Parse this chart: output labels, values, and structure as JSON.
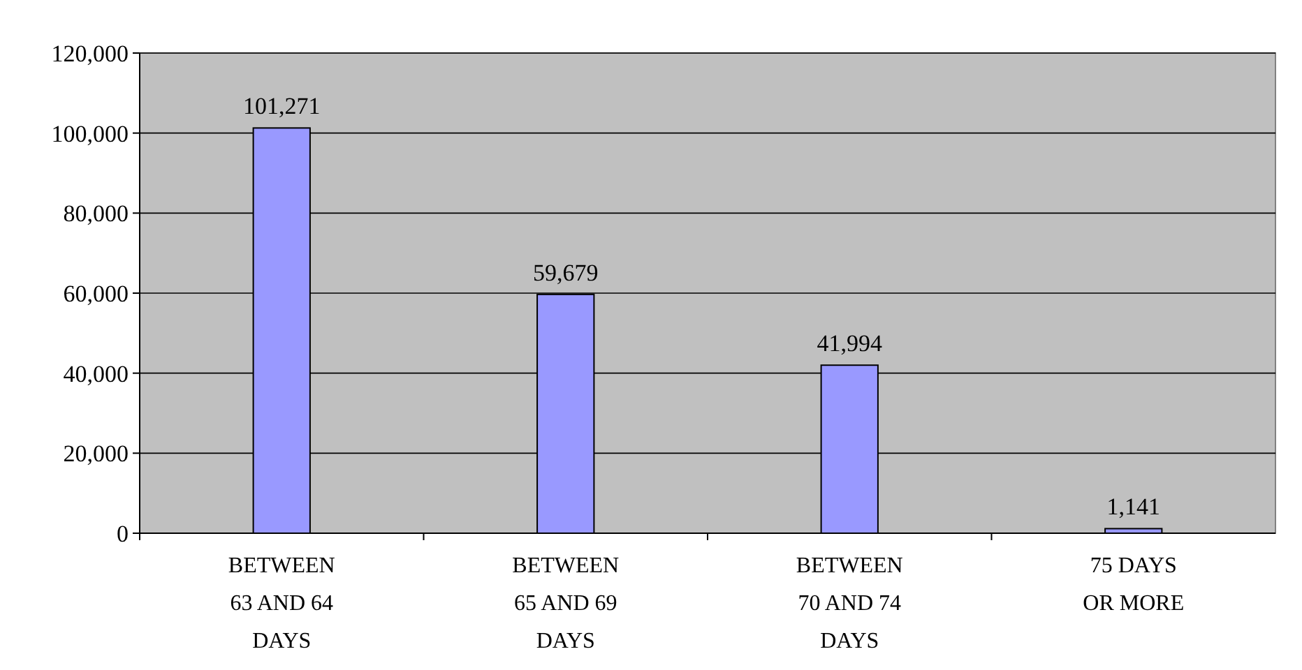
{
  "chart_data": {
    "type": "bar",
    "categories": [
      "BETWEEN 63 AND 64 DAYS",
      "BETWEEN 65 AND 69 DAYS",
      "BETWEEN 70 AND 74 DAYS",
      "75 DAYS OR MORE"
    ],
    "values": [
      101271,
      59679,
      41994,
      1141
    ],
    "color": "#9999ff",
    "ylim": [
      0,
      120000
    ],
    "yticks": [
      {
        "value": 0,
        "label": "0"
      },
      {
        "value": 20000,
        "label": "20,000"
      },
      {
        "value": 40000,
        "label": "40,000"
      },
      {
        "value": 60000,
        "label": "60,000"
      },
      {
        "value": 80000,
        "label": "80,000"
      },
      {
        "value": 100000,
        "label": "100,000"
      },
      {
        "value": 120000,
        "label": "120,000"
      }
    ],
    "grid": true,
    "value_labels": [
      "101,271",
      "59,679",
      "41,994",
      "1,141"
    ]
  }
}
